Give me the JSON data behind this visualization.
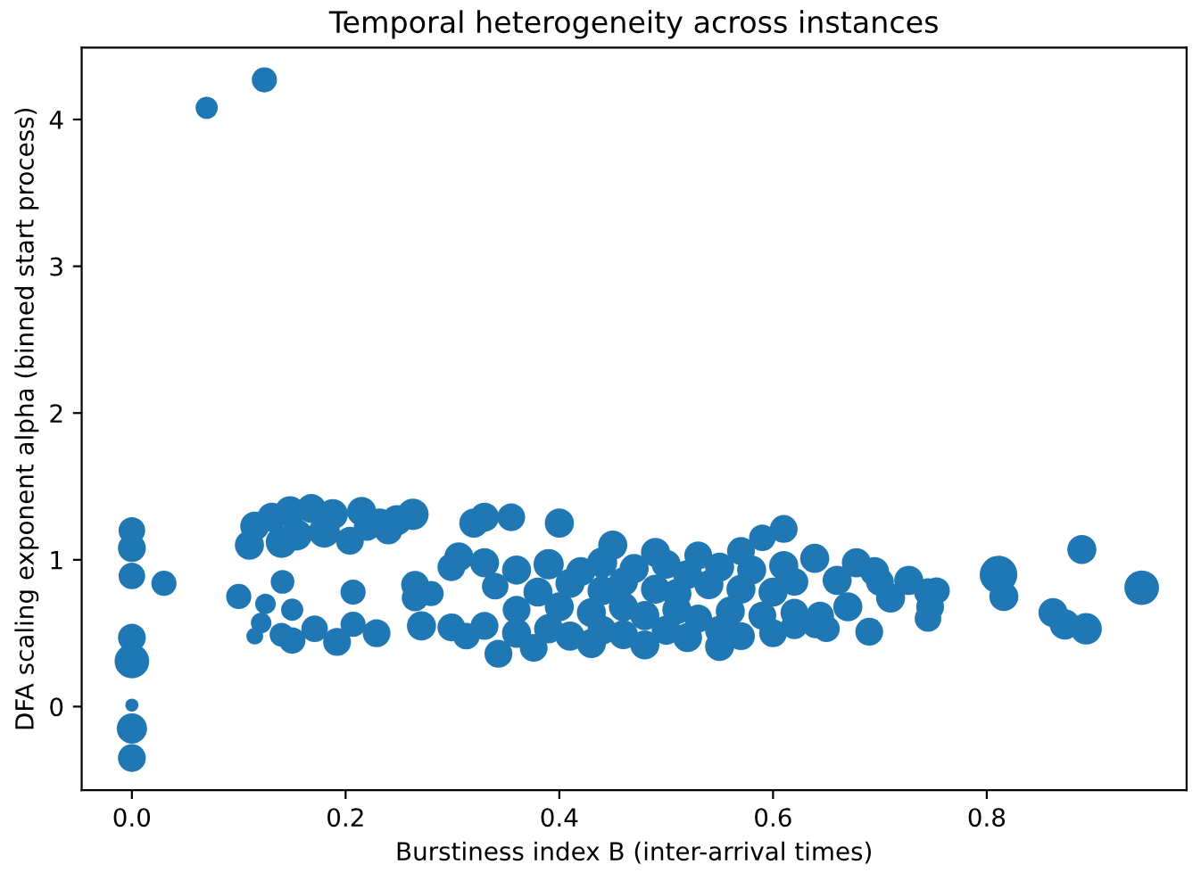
{
  "chart_data": {
    "type": "bubble",
    "title": "Temporal heterogeneity across instances",
    "xlabel": "Burstiness index B (inter-arrival times)",
    "ylabel": "DFA scaling exponent alpha (binned start process)",
    "xlim": [
      -0.047,
      0.987
    ],
    "ylim": [
      -0.57,
      4.49
    ],
    "xticks": [
      {
        "value": 0,
        "label": "0.0"
      },
      {
        "value": 0.2,
        "label": "0.2"
      },
      {
        "value": 0.4,
        "label": "0.4"
      },
      {
        "value": 0.6,
        "label": "0.6"
      },
      {
        "value": 0.8,
        "label": "0.8"
      }
    ],
    "yticks": [
      0,
      1,
      2,
      3,
      4
    ],
    "grid": false,
    "marker": "circle",
    "series": [
      {
        "color": "#1f77b4",
        "x": [
          0.07,
          0.124,
          0,
          0,
          0,
          0,
          0,
          0,
          0,
          0,
          0.03,
          0.1,
          0.141,
          0.125,
          0.15,
          0.121,
          0.115,
          0.14,
          0.15,
          0.171,
          0.192,
          0.207,
          0.207,
          0.229,
          0.265,
          0.265,
          0.28,
          0.271,
          0.299,
          0.313,
          0.11,
          0.115,
          0.131,
          0.148,
          0.168,
          0.188,
          0.204,
          0.215,
          0.232,
          0.248,
          0.263,
          0.154,
          0.18,
          0.14,
          0.24,
          0.22,
          0.32,
          0.306,
          0.299,
          0.33,
          0.355,
          0.4,
          0.61,
          0.45,
          0.49,
          0.53,
          0.57,
          0.59,
          0.343,
          0.376,
          0.43,
          0.48,
          0.55,
          0.6,
          0.33,
          0.36,
          0.39,
          0.42,
          0.44,
          0.47,
          0.5,
          0.52,
          0.55,
          0.58,
          0.61,
          0.34,
          0.38,
          0.41,
          0.44,
          0.46,
          0.49,
          0.51,
          0.54,
          0.57,
          0.6,
          0.62,
          0.36,
          0.4,
          0.43,
          0.46,
          0.48,
          0.51,
          0.53,
          0.56,
          0.59,
          0.62,
          0.33,
          0.36,
          0.39,
          0.41,
          0.44,
          0.46,
          0.5,
          0.52,
          0.55,
          0.57,
          0.62,
          0.639,
          0.678,
          0.695,
          0.727,
          0.67,
          0.644,
          0.66,
          0.71,
          0.747,
          0.745,
          0.64,
          0.65,
          0.69,
          0.745,
          0.753,
          0.7,
          0.811,
          0.816,
          0.862,
          0.873,
          0.893,
          0.889,
          0.945
        ],
        "values": [
          4.08,
          4.27,
          1.2,
          1.08,
          0.89,
          0.47,
          0.31,
          0.01,
          -0.15,
          -0.35,
          0.84,
          0.75,
          0.85,
          0.7,
          0.66,
          0.57,
          0.48,
          0.49,
          0.45,
          0.53,
          0.44,
          0.56,
          0.78,
          0.5,
          0.83,
          0.74,
          0.77,
          0.55,
          0.54,
          0.48,
          1.1,
          1.23,
          1.29,
          1.33,
          1.35,
          1.31,
          1.13,
          1.33,
          1.25,
          1.27,
          1.31,
          1.17,
          1.19,
          1.12,
          1.2,
          1.22,
          1.25,
          1.02,
          0.95,
          1.29,
          1.29,
          1.25,
          1.21,
          1.1,
          1.05,
          1.03,
          1.06,
          1.15,
          0.36,
          0.4,
          0.43,
          0.42,
          0.41,
          0.5,
          0.98,
          0.93,
          0.97,
          0.92,
          0.98,
          0.94,
          0.97,
          0.9,
          0.95,
          0.93,
          0.96,
          0.82,
          0.78,
          0.84,
          0.79,
          0.85,
          0.8,
          0.77,
          0.83,
          0.8,
          0.78,
          0.85,
          0.66,
          0.68,
          0.64,
          0.68,
          0.62,
          0.66,
          0.6,
          0.65,
          0.62,
          0.64,
          0.55,
          0.5,
          0.53,
          0.48,
          0.52,
          0.49,
          0.52,
          0.47,
          0.52,
          0.48,
          0.55,
          1.01,
          0.98,
          0.92,
          0.86,
          0.68,
          0.62,
          0.86,
          0.74,
          0.68,
          0.78,
          0.56,
          0.53,
          0.51,
          0.6,
          0.79,
          0.85,
          0.9,
          0.75,
          0.64,
          0.56,
          0.53,
          1.07,
          0.81
        ],
        "sizes": [
          0.35,
          0.45,
          0.5,
          0.55,
          0.5,
          0.55,
          0.85,
          0.12,
          0.65,
          0.55,
          0.45,
          0.45,
          0.4,
          0.3,
          0.35,
          0.3,
          0.2,
          0.4,
          0.5,
          0.5,
          0.55,
          0.45,
          0.45,
          0.55,
          0.55,
          0.5,
          0.45,
          0.6,
          0.55,
          0.5,
          0.6,
          0.6,
          0.6,
          0.65,
          0.6,
          0.65,
          0.55,
          0.6,
          0.6,
          0.65,
          0.7,
          0.7,
          0.7,
          0.7,
          0.55,
          0.5,
          0.6,
          0.6,
          0.55,
          0.6,
          0.55,
          0.6,
          0.55,
          0.6,
          0.6,
          0.55,
          0.55,
          0.5,
          0.55,
          0.55,
          0.6,
          0.6,
          0.6,
          0.55,
          0.6,
          0.6,
          0.65,
          0.6,
          0.65,
          0.6,
          0.6,
          0.6,
          0.6,
          0.6,
          0.6,
          0.5,
          0.6,
          0.6,
          0.6,
          0.6,
          0.6,
          0.6,
          0.6,
          0.6,
          0.6,
          0.55,
          0.55,
          0.6,
          0.6,
          0.6,
          0.6,
          0.6,
          0.55,
          0.6,
          0.55,
          0.55,
          0.55,
          0.6,
          0.6,
          0.6,
          0.6,
          0.6,
          0.6,
          0.6,
          0.6,
          0.55,
          0.5,
          0.6,
          0.6,
          0.6,
          0.6,
          0.6,
          0.55,
          0.6,
          0.6,
          0.55,
          0.55,
          0.55,
          0.5,
          0.55,
          0.5,
          0.5,
          0.55,
          1.0,
          0.6,
          0.6,
          0.65,
          0.7,
          0.6,
          0.85
        ]
      }
    ]
  }
}
